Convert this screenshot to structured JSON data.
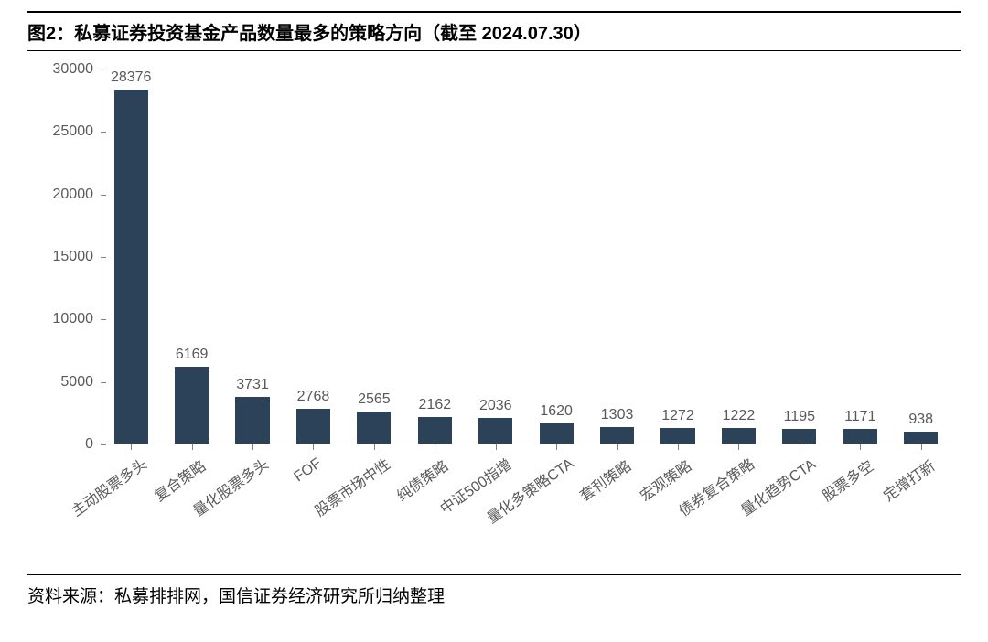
{
  "title": "图2：私募证券投资基金产品数量最多的策略方向（截至 2024.07.30）",
  "footer": "资料来源：私募排排网，国信证券经济研究所归纳整理",
  "chart": {
    "type": "bar",
    "bar_color": "#2c4259",
    "background_color": "#ffffff",
    "axis_color": "#808080",
    "text_color": "#595959",
    "title_fontsize": 20,
    "label_fontsize": 16,
    "ylim": [
      0,
      30000
    ],
    "ytick_step": 5000,
    "yticks": [
      0,
      5000,
      10000,
      15000,
      20000,
      25000,
      30000
    ],
    "bar_width": 0.56,
    "x_label_rotation": -35,
    "categories": [
      "主动股票多头",
      "复合策略",
      "量化股票多头",
      "FOF",
      "股票市场中性",
      "纯债策略",
      "中证500指增",
      "量化多策略CTA",
      "套利策略",
      "宏观策略",
      "债券复合策略",
      "量化趋势CTA",
      "股票多空",
      "定增打新"
    ],
    "values": [
      28376,
      6169,
      3731,
      2768,
      2565,
      2162,
      2036,
      1620,
      1303,
      1272,
      1222,
      1195,
      1171,
      938
    ]
  }
}
